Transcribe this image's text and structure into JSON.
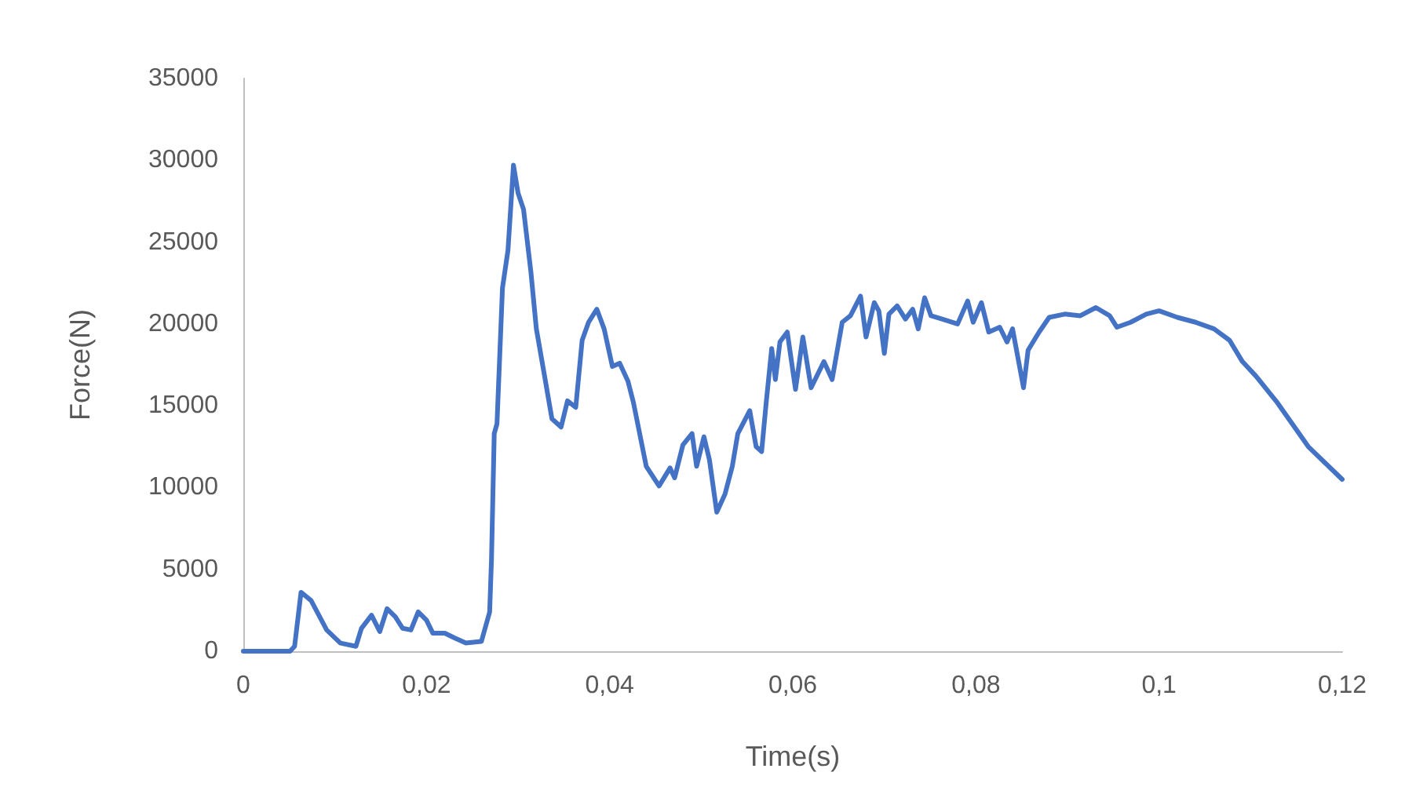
{
  "chart_data": {
    "type": "line",
    "xlabel": "Time(s)",
    "ylabel": "Force(N)",
    "grid": false,
    "marker": "none",
    "line_style": "solid",
    "xlim": [
      0,
      0.12
    ],
    "xticks": [
      0,
      {
        "value": 0.02,
        "label": "0,02"
      },
      {
        "value": 0.04,
        "label": "0,04"
      },
      {
        "value": 0.06,
        "label": "0,06"
      },
      {
        "value": 0.08,
        "label": "0,08"
      },
      {
        "value": 0.1,
        "label": "0,1"
      },
      {
        "value": 0.12,
        "label": "0,12"
      }
    ],
    "ylim": [
      0,
      35000
    ],
    "yticks": [
      0,
      5000,
      10000,
      15000,
      20000,
      25000,
      30000,
      35000
    ],
    "series": [
      {
        "color": "#4472c4",
        "x": [
          0,
          0.0051,
          0.0056,
          0.0063,
          0.0074,
          0.0091,
          0.0106,
          0.0123,
          0.0129,
          0.014,
          0.0149,
          0.0157,
          0.0166,
          0.0174,
          0.0183,
          0.0191,
          0.02,
          0.0207,
          0.022,
          0.0231,
          0.0243,
          0.026,
          0.0269,
          0.0271,
          0.0274,
          0.0277,
          0.0283,
          0.0289,
          0.0295,
          0.03,
          0.0306,
          0.0314,
          0.032,
          0.0329,
          0.0337,
          0.0347,
          0.0354,
          0.0363,
          0.037,
          0.0377,
          0.0386,
          0.0394,
          0.0403,
          0.0411,
          0.042,
          0.0426,
          0.044,
          0.0454,
          0.0466,
          0.0471,
          0.048,
          0.049,
          0.0495,
          0.0503,
          0.0509,
          0.0517,
          0.0526,
          0.0534,
          0.054,
          0.0553,
          0.056,
          0.0566,
          0.0571,
          0.0577,
          0.0581,
          0.0586,
          0.0594,
          0.0603,
          0.0611,
          0.062,
          0.0634,
          0.0643,
          0.0654,
          0.0663,
          0.0674,
          0.068,
          0.0689,
          0.0694,
          0.07,
          0.0705,
          0.0714,
          0.0723,
          0.0731,
          0.0737,
          0.0744,
          0.0751,
          0.0763,
          0.078,
          0.0791,
          0.0797,
          0.0806,
          0.0814,
          0.0826,
          0.0834,
          0.084,
          0.0852,
          0.0857,
          0.0869,
          0.088,
          0.0897,
          0.0914,
          0.0931,
          0.0946,
          0.0954,
          0.0969,
          0.0986,
          0.1,
          0.102,
          0.104,
          0.106,
          0.1077,
          0.1091,
          0.1106,
          0.1129,
          0.1163,
          0.12
        ],
        "values": [
          0,
          0,
          300,
          3600,
          3100,
          1300,
          500,
          300,
          1400,
          2200,
          1200,
          2600,
          2100,
          1400,
          1300,
          2400,
          1900,
          1100,
          1100,
          800,
          500,
          600,
          2400,
          5600,
          13300,
          13900,
          22200,
          24500,
          29700,
          28000,
          27000,
          23200,
          19700,
          16800,
          14200,
          13700,
          15300,
          14900,
          19000,
          20100,
          20900,
          19700,
          17400,
          17600,
          16500,
          15200,
          11300,
          10100,
          11200,
          10600,
          12600,
          13300,
          11300,
          13100,
          11700,
          8500,
          9600,
          11300,
          13300,
          14700,
          12500,
          12200,
          15200,
          18500,
          16600,
          18900,
          19500,
          16000,
          19200,
          16100,
          17700,
          16600,
          20100,
          20500,
          21700,
          19200,
          21300,
          20800,
          18200,
          20600,
          21100,
          20300,
          20900,
          19700,
          21600,
          20500,
          20300,
          20000,
          21400,
          20100,
          21300,
          19500,
          19800,
          18900,
          19700,
          16100,
          18400,
          19500,
          20400,
          20600,
          20500,
          21000,
          20500,
          19800,
          20100,
          20600,
          20800,
          20400,
          20100,
          19700,
          19000,
          17700,
          16800,
          15200,
          12500,
          10500
        ]
      }
    ]
  }
}
